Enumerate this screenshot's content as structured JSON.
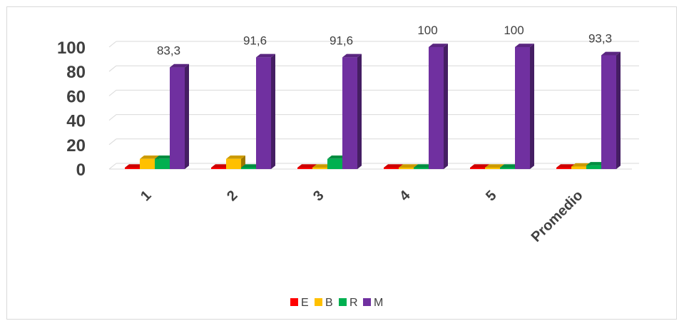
{
  "chart_data": {
    "type": "bar",
    "categories": [
      "1",
      "2",
      "3",
      "4",
      "5",
      "Promedio"
    ],
    "series": [
      {
        "name": "E",
        "color": "#ff0000",
        "values": [
          0,
          0,
          0,
          0,
          0,
          0
        ]
      },
      {
        "name": "B",
        "color": "#ffc000",
        "values": [
          8.3,
          8.3,
          0,
          0,
          0,
          2
        ]
      },
      {
        "name": "R",
        "color": "#00b050",
        "values": [
          8.3,
          0,
          8.3,
          0,
          0,
          3
        ]
      },
      {
        "name": "M",
        "color": "#7030a0",
        "values": [
          83.3,
          91.6,
          91.6,
          100,
          100,
          93.3
        ]
      }
    ],
    "data_labels": [
      "83,3",
      "91,6",
      "91,6",
      "100",
      "100",
      "93,3"
    ],
    "data_label_colors": [
      "#404040",
      "#404040",
      "#404040",
      "#404040",
      "#404040",
      "#ff0000"
    ],
    "yticks": [
      "0",
      "20",
      "40",
      "60",
      "80",
      "100"
    ],
    "ylim": [
      0,
      100
    ],
    "grid": true,
    "legend_position": "bottom",
    "title": "",
    "xlabel": "",
    "ylabel": ""
  }
}
